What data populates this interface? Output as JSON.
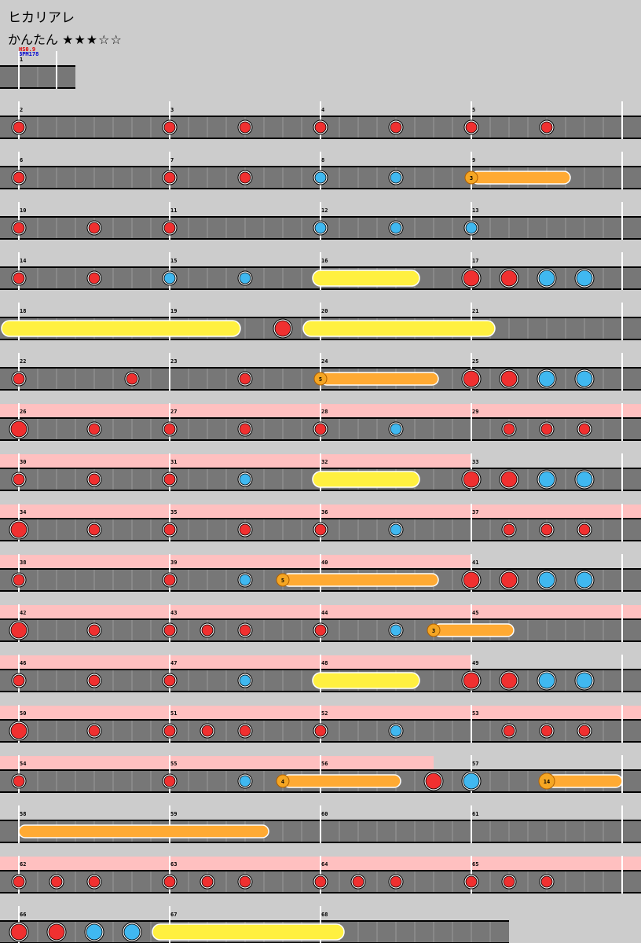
{
  "song": {
    "title": "ヒカリアレ",
    "difficulty_label": "かんたん",
    "stars_text": "★★★☆☆",
    "stars_filled": 3,
    "stars_total": 5
  },
  "header": {
    "hs": "HS0.9",
    "bpm": "BPM178"
  },
  "legend": {
    "don_color": "#f03030",
    "ka_color": "#40b8f0",
    "drumroll_color": "#ffaa33",
    "big_drumroll_color": "#fff040",
    "gogo_color": "#ffc0c0",
    "lane_color": "#777777"
  },
  "notes_key": {
    "d": "don",
    "k": "ka",
    "D": "big-don",
    "K": "big-ka",
    "r": "drumroll-start",
    "R": "big-drumroll-start",
    "B": "balloon"
  },
  "rows": [
    {
      "measures": [
        {
          "num": 1,
          "len": 2,
          "notes": ""
        }
      ],
      "partial": true
    },
    {
      "measures": [
        {
          "num": 2,
          "notes": "d.......",
          "gogo": false
        },
        {
          "num": 3,
          "notes": "d...d...",
          "gogo": false
        },
        {
          "num": 4,
          "notes": "d...d...",
          "gogo": false
        },
        {
          "num": 5,
          "notes": "d...d...",
          "gogo": false
        }
      ]
    },
    {
      "measures": [
        {
          "num": 6,
          "notes": "d.......",
          "gogo": false
        },
        {
          "num": 7,
          "notes": "d...d...",
          "gogo": false
        },
        {
          "num": 8,
          "notes": "k...k...",
          "gogo": false
        },
        {
          "num": 9,
          "notes": "B.....",
          "balloon": [
            {
              "start": 0,
              "end": 5.25,
              "count": "3"
            }
          ],
          "gogo": false
        }
      ]
    },
    {
      "measures": [
        {
          "num": 10,
          "notes": "d...d...",
          "gogo": false
        },
        {
          "num": 11,
          "notes": "d.......",
          "gogo": false
        },
        {
          "num": 12,
          "notes": "k...k...",
          "gogo": false
        },
        {
          "num": 13,
          "notes": "k.......",
          "gogo": false
        }
      ]
    },
    {
      "measures": [
        {
          "num": 14,
          "notes": "d...d...",
          "gogo": false
        },
        {
          "num": 15,
          "notes": "k...k...",
          "gogo": false
        },
        {
          "num": 16,
          "notes": "",
          "roll": [
            {
              "start": 0,
              "end": 5.25,
              "big": true
            }
          ],
          "gogo": false
        },
        {
          "num": 17,
          "notes": "D.D.K.K.",
          "gogo": false
        }
      ]
    },
    {
      "measures": [
        {
          "num": 18,
          "notes": "",
          "roll": [
            {
              "start": -0.5,
              "end": 11.75,
              "big": true
            }
          ],
          "gogo": false
        },
        {
          "num": 19,
          "notes": "......D.",
          "gogo": false
        },
        {
          "num": 20,
          "notes": "",
          "roll": [
            {
              "start": -0.5,
              "end": 9.25,
              "big": true
            }
          ],
          "gogo": false
        },
        {
          "num": 21,
          "notes": "",
          "gogo": false
        }
      ]
    },
    {
      "measures": [
        {
          "num": 22,
          "notes": "d.....d.",
          "gogo": false
        },
        {
          "num": 23,
          "notes": "....d...",
          "gogo": false
        },
        {
          "num": 24,
          "notes": "",
          "balloon": [
            {
              "start": 0,
              "end": 6.25,
              "count": "5"
            }
          ],
          "gogo": false
        },
        {
          "num": 25,
          "notes": "D.D.K.K.",
          "gogo": false
        }
      ]
    },
    {
      "measures": [
        {
          "num": 26,
          "notes": "D...d...",
          "gogo": true
        },
        {
          "num": 27,
          "notes": "d...d...",
          "gogo": true
        },
        {
          "num": 28,
          "notes": "d...k...",
          "gogo": true
        },
        {
          "num": 29,
          "notes": "..d.d.d.",
          "gogo": true
        }
      ]
    },
    {
      "measures": [
        {
          "num": 30,
          "notes": "d...d...",
          "gogo": true
        },
        {
          "num": 31,
          "notes": "d...k...",
          "gogo": true
        },
        {
          "num": 32,
          "notes": "",
          "roll": [
            {
              "start": 0,
              "end": 5.25,
              "big": true
            }
          ],
          "gogo": true
        },
        {
          "num": 33,
          "notes": "D.D.K.K.",
          "gogo": false
        }
      ]
    },
    {
      "measures": [
        {
          "num": 34,
          "notes": "D...d...",
          "gogo": true
        },
        {
          "num": 35,
          "notes": "d...d...",
          "gogo": true
        },
        {
          "num": 36,
          "notes": "d...k...",
          "gogo": true
        },
        {
          "num": 37,
          "notes": "..d.d.d.",
          "gogo": true
        }
      ]
    },
    {
      "measures": [
        {
          "num": 38,
          "notes": "d.......",
          "gogo": true
        },
        {
          "num": 39,
          "notes": "d...k...",
          "balloon": [
            {
              "start": 6,
              "end": 14.25,
              "count": "5"
            }
          ],
          "gogo": true
        },
        {
          "num": 40,
          "notes": "",
          "gogo": true
        },
        {
          "num": 41,
          "notes": "D.D.K.K.",
          "gogo": false
        }
      ]
    },
    {
      "measures": [
        {
          "num": 42,
          "notes": "D...d...",
          "gogo": true
        },
        {
          "num": 43,
          "notes": "d.d.d...",
          "gogo": true
        },
        {
          "num": 44,
          "notes": "d...k.",
          "balloon": [
            {
              "start": 6,
              "end": 10.25,
              "count": "3"
            }
          ],
          "gogo": true
        },
        {
          "num": 45,
          "notes": "",
          "gogo": true
        }
      ]
    },
    {
      "measures": [
        {
          "num": 46,
          "notes": "d...d...",
          "gogo": true
        },
        {
          "num": 47,
          "notes": "d...k...",
          "gogo": true
        },
        {
          "num": 48,
          "notes": "",
          "roll": [
            {
              "start": 0,
              "end": 5.25,
              "big": true
            }
          ],
          "gogo": true
        },
        {
          "num": 49,
          "notes": "D.D.K.K.",
          "gogo": false
        }
      ]
    },
    {
      "measures": [
        {
          "num": 50,
          "notes": "D...d...",
          "gogo": true
        },
        {
          "num": 51,
          "notes": "d.d.d...",
          "gogo": true
        },
        {
          "num": 52,
          "notes": "d...k...",
          "gogo": true
        },
        {
          "num": 53,
          "notes": "..d.d.d.",
          "gogo": true
        }
      ]
    },
    {
      "measures": [
        {
          "num": 54,
          "notes": "d.......",
          "gogo": true
        },
        {
          "num": 55,
          "notes": "d...k...",
          "balloon": [
            {
              "start": 6,
              "end": 12.25,
              "count": "4"
            }
          ],
          "gogo": true
        },
        {
          "num": 56,
          "notes": "......D.",
          "gogoEnd": 6,
          "gogo": true
        },
        {
          "num": 57,
          "notes": "K.......",
          "balloon": [
            {
              "start": 4,
              "end": 8,
              "count": "14",
              "big": true
            }
          ],
          "gogo": false
        }
      ]
    },
    {
      "measures": [
        {
          "num": 58,
          "notes": "",
          "roll": [
            {
              "start": 0,
              "end": 13.25,
              "big": false
            }
          ],
          "gogo": false
        },
        {
          "num": 59,
          "notes": "",
          "gogo": false
        },
        {
          "num": 60,
          "notes": "",
          "gogo": false
        },
        {
          "num": 61,
          "notes": "",
          "gogo": false
        }
      ]
    },
    {
      "measures": [
        {
          "num": 62,
          "notes": "d.d.d...",
          "gogo": true
        },
        {
          "num": 63,
          "notes": "d.d.d...",
          "gogo": true
        },
        {
          "num": 64,
          "notes": "d.d.d...",
          "gogo": true
        },
        {
          "num": 65,
          "notes": "d.d.d...",
          "gogo": true
        }
      ]
    },
    {
      "measures": [
        {
          "num": 66,
          "notes": "D.D.K.K.",
          "gogo": false
        },
        {
          "num": 67,
          "notes": "",
          "roll": [
            {
              "start": -0.5,
              "end": 9.25,
              "big": true
            }
          ],
          "gogo": false
        },
        {
          "num": 68,
          "notes": "",
          "gogo": false,
          "len": 4
        }
      ],
      "partial": true
    }
  ]
}
